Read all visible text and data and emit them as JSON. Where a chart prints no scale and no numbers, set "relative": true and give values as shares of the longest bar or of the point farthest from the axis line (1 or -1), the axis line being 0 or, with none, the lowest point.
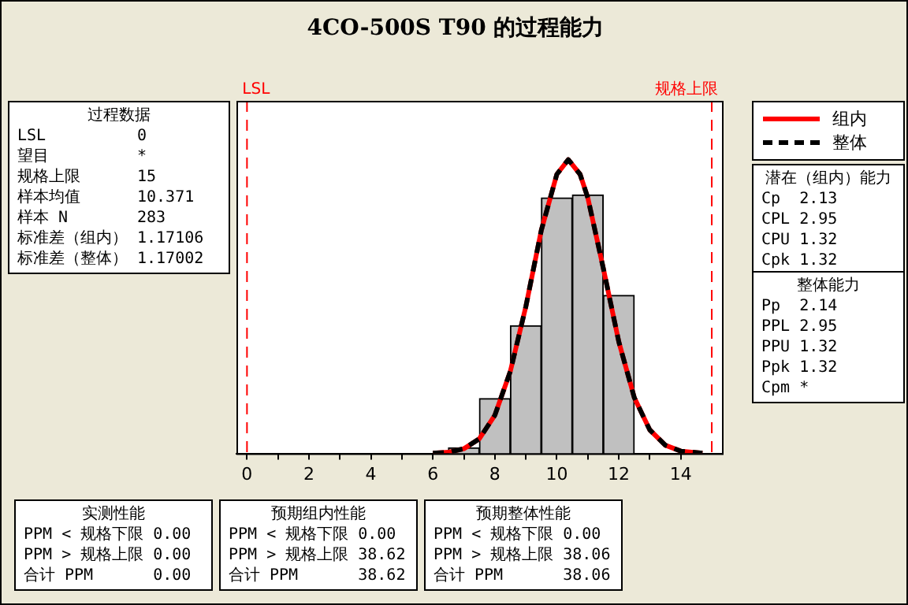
{
  "chart_data": {
    "type": "histogram",
    "title": "4CO-500S T90 的过程能力",
    "relative": true,
    "bins": [
      6.5,
      7.5,
      8.5,
      9.5,
      10.5,
      11.5,
      12.5
    ],
    "values": [
      0.019,
      0.187,
      0.435,
      0.87,
      0.88,
      0.538
    ],
    "color": "#c0c0c0",
    "series": [
      {
        "name": "组内",
        "type": "line",
        "color": "#ff0000",
        "line_style": "solid",
        "x": [
          6.0,
          6.5,
          7.0,
          7.5,
          8.0,
          8.5,
          9.0,
          9.5,
          10.0,
          10.37,
          10.75,
          11.0,
          11.5,
          12.0,
          12.5,
          13.0,
          13.5,
          14.0,
          14.7
        ],
        "values": [
          0.001,
          0.004,
          0.016,
          0.05,
          0.13,
          0.28,
          0.5,
          0.76,
          0.95,
          1,
          0.95,
          0.87,
          0.63,
          0.38,
          0.19,
          0.08,
          0.028,
          0.008,
          0.001
        ]
      },
      {
        "name": "整体",
        "type": "line",
        "color": "#000000",
        "line_style": "dashed",
        "x": [
          6.0,
          6.5,
          7.0,
          7.5,
          8.0,
          8.5,
          9.0,
          9.5,
          10.0,
          10.37,
          10.75,
          11.0,
          11.5,
          12.0,
          12.5,
          13.0,
          13.5,
          14.0,
          14.7
        ],
        "values": [
          0.001,
          0.004,
          0.016,
          0.05,
          0.13,
          0.28,
          0.5,
          0.76,
          0.95,
          1,
          0.95,
          0.87,
          0.63,
          0.38,
          0.19,
          0.08,
          0.028,
          0.008,
          0.001
        ]
      }
    ],
    "xlim": [
      -0.34,
      15.33
    ],
    "xticks": [
      0,
      {
        "value": 1,
        "label": null
      },
      2,
      {
        "value": 3,
        "label": null
      },
      4,
      {
        "value": 5,
        "label": null
      },
      6,
      {
        "value": 7,
        "label": null
      },
      8,
      {
        "value": 9,
        "label": null
      },
      10,
      {
        "value": 11,
        "label": null
      },
      12,
      {
        "value": 13,
        "label": null
      },
      14
    ],
    "ref_lines": [
      {
        "axis": "x",
        "value": 0,
        "label": "LSL",
        "color": "#ff0000",
        "line_style": "dashed"
      },
      {
        "axis": "x",
        "value": 15,
        "label": "规格上限",
        "color": "#ff0000",
        "line_style": "dashed"
      }
    ],
    "legend": "right",
    "annotations": [
      "过程数据\nLSL\t0\n望目\t*\n规格上限\t15\n样本均值\t10.371\n样本 N\t283\n标准差（组内）\t1.17106\n标准差（整体）\t1.17002",
      "潜在（组内）能力\nCp\t2.13\nCPL\t2.95\nCPU\t1.32\nCpk\t1.32",
      "整体能力\nPp\t2.14\nPPL\t2.95\nPPU\t1.32\nPpk\t1.32\nCpm\t*",
      "实测性能\nPPM < 规格下限\t0.00\nPPM > 规格上限\t0.00\n合计 PPM\t0.00",
      "预期组内性能\nPPM < 规格下限\t0.00\nPPM > 规格上限\t38.62\n合计 PPM\t38.62",
      "预期整体性能\nPPM < 规格下限\t0.00\nPPM > 规格上限\t38.06\n合计 PPM\t38.06"
    ]
  }
}
